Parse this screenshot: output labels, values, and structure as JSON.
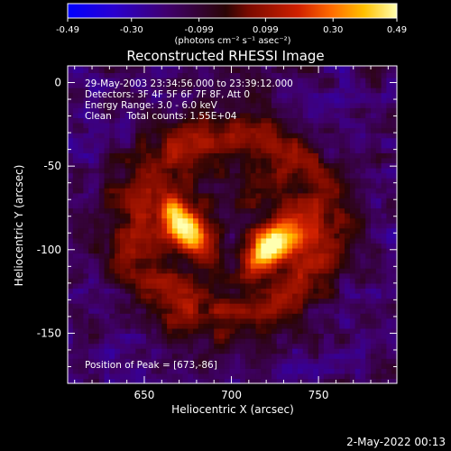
{
  "chart_data": {
    "type": "heatmap",
    "title": "Reconstructed RHESSI Image",
    "xlabel": "Heliocentric X (arcsec)",
    "ylabel": "Heliocentric Y (arcsec)",
    "xlim": [
      606,
      795
    ],
    "ylim": [
      -180,
      10
    ],
    "x_ticks": [
      650,
      700,
      750
    ],
    "y_ticks": [
      0,
      -50,
      -100,
      -150
    ],
    "colorbar": {
      "ticks": [
        "-0.49",
        "-0.30",
        "-0.099",
        "0.099",
        "0.30",
        "0.49"
      ],
      "values": [
        -0.49,
        -0.3,
        -0.099,
        0.099,
        0.3,
        0.49
      ],
      "range": [
        -0.49,
        0.49
      ],
      "unit_label": "(photons cm⁻² s⁻¹ asec⁻²)",
      "colors": [
        "#0000ff",
        "#3a00b0",
        "#4a0d6a",
        "#6a0a0a",
        "#c11d00",
        "#ff5a00",
        "#ffb000",
        "#ffffa0"
      ]
    },
    "annotations": [
      "29-May-2003 23:34:56.000 to 23:39:12.000",
      "Detectors: 3F 4F 5F 6F 7F 8F, Att 0",
      "Energy Range: 3.0 - 6.0 keV",
      "Clean     Total counts: 1.55E+04"
    ],
    "peak_label": "Position of Peak = [673,-86]",
    "sources": [
      {
        "x": 673,
        "y": -86,
        "peak": 0.49
      },
      {
        "x": 724,
        "y": -97,
        "peak": 0.46
      }
    ],
    "ring": {
      "center_x": 698,
      "center_y": -85,
      "radius": 55,
      "level": 0.2
    }
  },
  "footer_date": "2-May-2022 00:13"
}
